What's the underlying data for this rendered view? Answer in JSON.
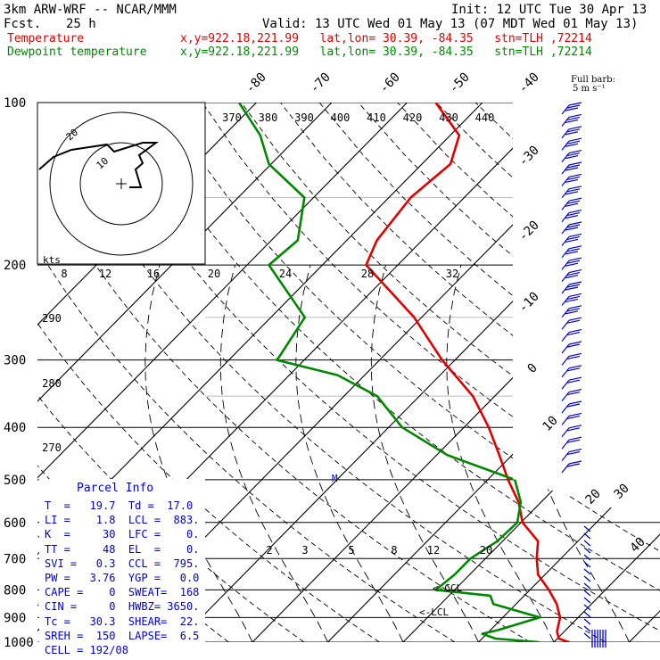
{
  "header": {
    "model": "3km ARW-WRF -- NCAR/MMM",
    "init": "Init: 12 UTC Tue 30 Apr 13",
    "fcst_label": "Fcst.",
    "fcst_value": "25 h",
    "valid": "Valid: 13 UTC Wed 01 May 13 (07 MDT Wed 01 May 13)",
    "temp_label": "Temperature",
    "temp_loc": "x,y=922.18,221.99   lat,lon= 30.39, -84.35   stn=TLH ,72214",
    "dew_label": "Dewpoint temperature",
    "dew_loc": "x,y=922.18,221.99   lat,lon= 30.39, -84.35   stn=TLH ,72214",
    "barb_note_1": "Full barb:",
    "barb_note_2": "5 m s⁻¹"
  },
  "parcel": {
    "title": "Parcel Info",
    "rows": [
      "T  =   19.7  Td =  17.0",
      "LI =    1.8  LCL =  883.",
      "K  =     30  LFC =    0.",
      "TT =     48  EL  =    0.",
      "SVI =   0.3  CCL =  795.",
      "PW =   3.76  YGP =   0.0",
      "CAPE =    0  SWEAT=  168",
      "CIN =     0  HWBZ= 3650.",
      "Tc =   30.3  SHEAR=  22.",
      "SREH =  150  LAPSE=  6.5",
      "CELL = 192/08"
    ]
  },
  "colors": {
    "temperature": "#e00000",
    "dewpoint": "#008800",
    "text_blue": "#0000cc",
    "barbs": "#0000cc",
    "grid": "#000000"
  },
  "chart_data": {
    "type": "line",
    "title": "",
    "ylabel": "",
    "pressure_ticks": [
      100,
      200,
      300,
      400,
      500,
      600,
      700,
      800,
      900,
      1000
    ],
    "isotherm_labels": [
      "-80",
      "-70",
      "-60",
      "-50",
      "-40",
      "-30",
      "-20",
      "-10",
      "0",
      "10",
      "20",
      "30",
      "40"
    ],
    "theta_e_labels": [
      "370",
      "380",
      "390",
      "400",
      "410",
      "420",
      "430",
      "440"
    ],
    "dry_adiabat_labels": [
      "290",
      "280",
      "270"
    ],
    "mixing_ratio_labels": [
      "2",
      "3",
      "5",
      "8",
      "12",
      "20"
    ],
    "upper_scale_labels": [
      "8",
      "12",
      "16",
      "20",
      "24",
      "28",
      "32"
    ],
    "parcel_markers": [
      "M",
      "CCL",
      "LCL"
    ],
    "hodograph_rings": [
      "10",
      "20"
    ],
    "hodograph_units": "kts",
    "series": [
      {
        "name": "Temperature",
        "color": "#e00000",
        "values": [
          [
            1000,
            22.0
          ],
          [
            985,
            20.2
          ],
          [
            955,
            19.0
          ],
          [
            900,
            17.6
          ],
          [
            850,
            15.4
          ],
          [
            800,
            12.5
          ],
          [
            750,
            9.1
          ],
          [
            700,
            6.8
          ],
          [
            650,
            4.7
          ],
          [
            600,
            0.2
          ],
          [
            550,
            -3.0
          ],
          [
            500,
            -7.3
          ],
          [
            450,
            -11.7
          ],
          [
            400,
            -16.7
          ],
          [
            350,
            -22.9
          ],
          [
            300,
            -31.7
          ],
          [
            250,
            -41.0
          ],
          [
            200,
            -54.2
          ],
          [
            180,
            -56.0
          ],
          [
            150,
            -57.1
          ],
          [
            130,
            -56.2
          ],
          [
            115,
            -58.8
          ],
          [
            100,
            -66.2
          ]
        ]
      },
      {
        "name": "Dewpoint temperature",
        "color": "#008800",
        "values": [
          [
            1000,
            18.0
          ],
          [
            985,
            11.8
          ],
          [
            965,
            9.4
          ],
          [
            950,
            11.0
          ],
          [
            900,
            14.9
          ],
          [
            850,
            7.0
          ],
          [
            820,
            5.5
          ],
          [
            800,
            -2.5
          ],
          [
            750,
            -2.0
          ],
          [
            700,
            -2.0
          ],
          [
            650,
            -0.7
          ],
          [
            600,
            -0.5
          ],
          [
            550,
            -2.7
          ],
          [
            500,
            -6.4
          ],
          [
            450,
            -18.6
          ],
          [
            400,
            -28.2
          ],
          [
            350,
            -35.6
          ],
          [
            320,
            -43.6
          ],
          [
            300,
            -53.6
          ],
          [
            250,
            -55.5
          ],
          [
            200,
            -67.1
          ],
          [
            180,
            -66.5
          ],
          [
            150,
            -71.2
          ],
          [
            130,
            -80.3
          ],
          [
            115,
            -85.2
          ],
          [
            100,
            -92.3
          ]
        ]
      }
    ]
  }
}
